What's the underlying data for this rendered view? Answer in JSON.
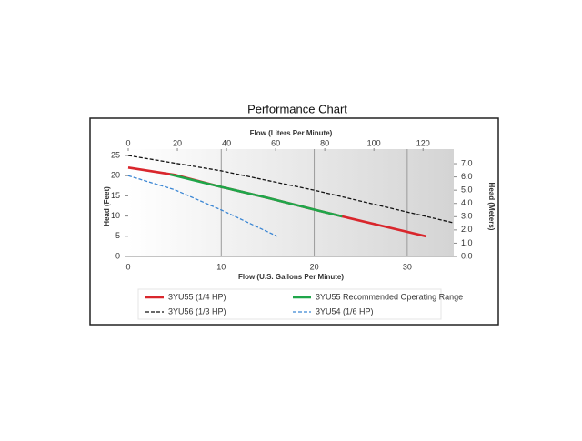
{
  "chart_data": {
    "type": "line",
    "title": "Performance Chart",
    "x_label": "Flow (U.S. Gallons Per Minute)",
    "x2_label": "Flow (Liters Per Minute)",
    "y_label": "Head (Feet)",
    "y2_label": "Head (Meters)",
    "xlim": [
      0,
      35
    ],
    "xticks": [
      0,
      10,
      20,
      30
    ],
    "x2lim": [
      0,
      132.5
    ],
    "x2ticks": [
      0,
      20,
      40,
      60,
      80,
      100,
      120
    ],
    "ylim": [
      0,
      25
    ],
    "yticks": [
      0,
      5,
      10,
      15,
      20,
      25
    ],
    "y2lim": [
      0,
      7.62
    ],
    "y2ticks": [
      {
        "value": 0,
        "label": "0.0"
      },
      {
        "value": 1,
        "label": "1.0"
      },
      {
        "value": 2,
        "label": "2.0"
      },
      {
        "value": 3,
        "label": "3.0"
      },
      {
        "value": 4,
        "label": "4.0"
      },
      {
        "value": 5,
        "label": "5.0"
      },
      {
        "value": 6,
        "label": "6.0"
      },
      {
        "value": 7,
        "label": "7.0"
      }
    ],
    "grid": true,
    "series": [
      {
        "name": "3YU55 (1/4 HP)",
        "color": "#d9262c",
        "line_style": "solid",
        "x": [
          0,
          5,
          10,
          15,
          20,
          23,
          32
        ],
        "values": [
          22,
          20.2,
          17.2,
          14.5,
          11.6,
          9.9,
          5
        ]
      },
      {
        "name": "3YU55 Recommended Operating Range",
        "color": "#1fa64a",
        "line_style": "solid",
        "x": [
          4.5,
          10,
          15,
          20,
          23
        ],
        "values": [
          20.3,
          17.2,
          14.5,
          11.6,
          9.9
        ]
      },
      {
        "name": "3YU56 (1/3 HP)",
        "color": "#111111",
        "line_style": "dashed",
        "x": [
          0,
          10,
          20,
          30,
          35
        ],
        "values": [
          25,
          21.2,
          16.4,
          11,
          8.3
        ]
      },
      {
        "name": "3YU54 (1/6 HP)",
        "color": "#3a86d4",
        "line_style": "dashed",
        "x": [
          0,
          5,
          10,
          16
        ],
        "values": [
          20,
          16.5,
          11.5,
          5
        ]
      }
    ]
  }
}
